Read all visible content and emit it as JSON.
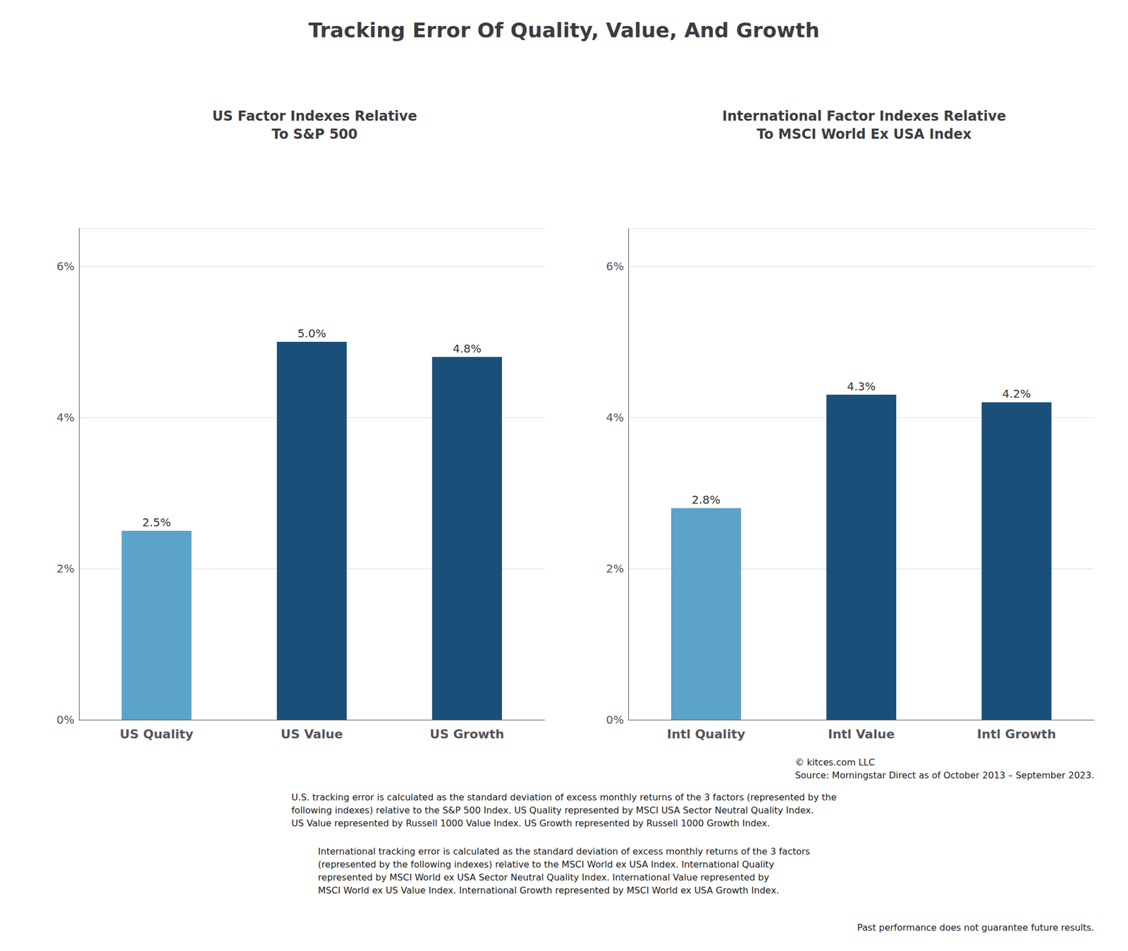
{
  "title": "Tracking Error Of Quality, Value, And Growth",
  "annotations": [
    [
      "© kitces.com LLC",
      "Source: Morningstar Direct as of October 2013 – September 2023."
    ],
    [
      "U.S. tracking error is calculated as the standard deviation of excess monthly returns of the 3 factors (represented by the",
      "following indexes) relative to the S&P 500 Index. US Quality represented by MSCI USA Sector Neutral Quality Index.",
      "US Value represented by Russell 1000 Value Index. US Growth represented by Russell 1000 Growth Index."
    ],
    [
      "International tracking error is calculated as the standard deviation of excess monthly returns of the 3 factors",
      "(represented by the following indexes) relative to the MSCI World ex USA Index. International Quality",
      "represented by MSCI World ex USA Sector Neutral Quality Index. International Value represented by",
      "MSCI World ex US Value Index. International Growth represented by MSCI World ex USA Growth Index."
    ],
    [
      "Past performance does not guarantee future results."
    ]
  ],
  "chart_data": [
    {
      "type": "bar",
      "title": "US Factor Indexes Relative\nTo S&P 500",
      "categories": [
        "US Quality",
        "US Value",
        "US Growth"
      ],
      "values": [
        2.5,
        5.0,
        4.8
      ],
      "value_labels": [
        "2.5%",
        "5.0%",
        "4.8%"
      ],
      "colors": [
        "#5ba3c9",
        "#1a4f7a",
        "#1a4f7a"
      ],
      "ylim": [
        0,
        6.5
      ],
      "yticks": [
        {
          "value": 0,
          "label": "0%"
        },
        {
          "value": 2,
          "label": "2%"
        },
        {
          "value": 4,
          "label": "4%"
        },
        {
          "value": 6,
          "label": "6%"
        }
      ],
      "grid": true,
      "data_labels": true
    },
    {
      "type": "bar",
      "title": "International Factor Indexes Relative\nTo MSCI World Ex USA Index",
      "categories": [
        "Intl Quality",
        "Intl Value",
        "Intl Growth"
      ],
      "values": [
        2.8,
        4.3,
        4.2
      ],
      "value_labels": [
        "2.8%",
        "4.3%",
        "4.2%"
      ],
      "colors": [
        "#5ba3c9",
        "#1a4f7a",
        "#1a4f7a"
      ],
      "ylim": [
        0,
        6.5
      ],
      "yticks": [
        {
          "value": 0,
          "label": "0%"
        },
        {
          "value": 2,
          "label": "2%"
        },
        {
          "value": 4,
          "label": "4%"
        },
        {
          "value": 6,
          "label": "6%"
        }
      ],
      "grid": true,
      "data_labels": true
    }
  ]
}
